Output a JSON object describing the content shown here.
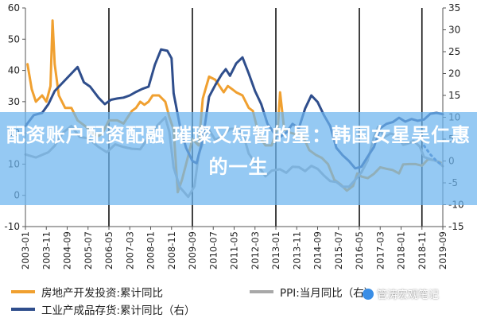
{
  "chart_data": {
    "type": "line",
    "title": "",
    "x_ticks": [
      "2003-01",
      "2003-11",
      "2004-09",
      "2005-07",
      "2006-05",
      "2007-03",
      "2008-01",
      "2008-11",
      "2009-09",
      "2010-07",
      "2011-05",
      "2012-03",
      "2013-01",
      "2013-11",
      "2014-09",
      "2015-07",
      "2016-05",
      "2017-03",
      "2018-01",
      "2018-11",
      "2019-09"
    ],
    "y_left": {
      "min": -10,
      "max": 60,
      "ticks": [
        "-10",
        "0",
        "10",
        "20",
        "30",
        "40",
        "50",
        "60"
      ]
    },
    "y_right": {
      "min": -15,
      "max": 35,
      "ticks": [
        "-15",
        "-10",
        "-5",
        "0",
        "5",
        "10",
        "15",
        "20",
        "25",
        "30",
        "35"
      ]
    },
    "grid": false,
    "legend_position": "bottom",
    "vlines": [
      "2006-05",
      "2009-09",
      "2013-01",
      "2016-05",
      "2018-11"
    ],
    "series": [
      {
        "name": "房地产开发投资:累计同比",
        "axis": "left",
        "color": "#f0a030",
        "points": [
          [
            "2003-02",
            42
          ],
          [
            "2003-04",
            34
          ],
          [
            "2003-06",
            30
          ],
          [
            "2003-09",
            32
          ],
          [
            "2003-11",
            30
          ],
          [
            "2004-01",
            35
          ],
          [
            "2004-02",
            56
          ],
          [
            "2004-03",
            42
          ],
          [
            "2004-05",
            32
          ],
          [
            "2004-08",
            28
          ],
          [
            "2004-11",
            28
          ],
          [
            "2005-02",
            24
          ],
          [
            "2005-06",
            22
          ],
          [
            "2005-09",
            20
          ],
          [
            "2005-12",
            19
          ],
          [
            "2006-02",
            20
          ],
          [
            "2006-05",
            24
          ],
          [
            "2006-09",
            24
          ],
          [
            "2006-12",
            23
          ],
          [
            "2007-02",
            25
          ],
          [
            "2007-04",
            27
          ],
          [
            "2007-06",
            28
          ],
          [
            "2007-08",
            30
          ],
          [
            "2007-10",
            29
          ],
          [
            "2007-12",
            30
          ],
          [
            "2008-02",
            32
          ],
          [
            "2008-05",
            32
          ],
          [
            "2008-08",
            30
          ],
          [
            "2008-10",
            25
          ],
          [
            "2008-12",
            21
          ],
          [
            "2009-02",
            1
          ],
          [
            "2009-04",
            5
          ],
          [
            "2009-06",
            10
          ],
          [
            "2009-09",
            18
          ],
          [
            "2009-12",
            16
          ],
          [
            "2010-02",
            31
          ],
          [
            "2010-05",
            38
          ],
          [
            "2010-08",
            37
          ],
          [
            "2010-12",
            33
          ],
          [
            "2011-02",
            35
          ],
          [
            "2011-04",
            34
          ],
          [
            "2011-06",
            33
          ],
          [
            "2011-09",
            32
          ],
          [
            "2011-12",
            28
          ],
          [
            "2012-02",
            27
          ],
          [
            "2012-05",
            19
          ],
          [
            "2012-08",
            16
          ],
          [
            "2012-11",
            16
          ],
          [
            "2013-02",
            22
          ],
          [
            "2013-03",
            33
          ],
          [
            "2013-05",
            21
          ],
          [
            "2013-08",
            20
          ],
          [
            "2013-11",
            19.5
          ],
          [
            "2014-02",
            19
          ],
          [
            "2014-05",
            14.5
          ],
          [
            "2014-08",
            13
          ],
          [
            "2014-11",
            12
          ],
          [
            "2015-02",
            10
          ],
          [
            "2015-05",
            5
          ],
          [
            "2015-08",
            3.5
          ],
          [
            "2015-11",
            1.5
          ],
          [
            "2016-02",
            3
          ],
          [
            "2016-04",
            7
          ],
          [
            "2016-06",
            6
          ],
          [
            "2016-09",
            5.5
          ],
          [
            "2016-12",
            6.9
          ],
          [
            "2017-03",
            9
          ],
          [
            "2017-06",
            8.5
          ],
          [
            "2017-09",
            8.1
          ],
          [
            "2017-12",
            7
          ],
          [
            "2018-02",
            9.9
          ],
          [
            "2018-05",
            10
          ],
          [
            "2018-08",
            10
          ],
          [
            "2018-11",
            9.5
          ],
          [
            "2019-02",
            11.6
          ],
          [
            "2019-05",
            11.2
          ],
          [
            "2019-08",
            10.5
          ]
        ]
      },
      {
        "name": "PPI:当月同比",
        "axis": "right",
        "color": "#a8a8a8",
        "points": [
          [
            "2003-01",
            1.5
          ],
          [
            "2003-06",
            0.8
          ],
          [
            "2003-12",
            2
          ],
          [
            "2004-03",
            3.5
          ],
          [
            "2004-07",
            6.5
          ],
          [
            "2004-11",
            8
          ],
          [
            "2005-03",
            5.5
          ],
          [
            "2005-07",
            5.2
          ],
          [
            "2005-12",
            3.2
          ],
          [
            "2006-04",
            2
          ],
          [
            "2006-08",
            3.8
          ],
          [
            "2006-12",
            3.2
          ],
          [
            "2007-04",
            2.8
          ],
          [
            "2007-08",
            2.7
          ],
          [
            "2007-12",
            5.4
          ],
          [
            "2008-04",
            8
          ],
          [
            "2008-08",
            10
          ],
          [
            "2008-10",
            6.6
          ],
          [
            "2008-12",
            -1.5
          ],
          [
            "2009-03",
            -6
          ],
          [
            "2009-07",
            -8.2
          ],
          [
            "2009-10",
            -5.8
          ],
          [
            "2009-12",
            1.5
          ],
          [
            "2010-03",
            5.5
          ],
          [
            "2010-05",
            7.1
          ],
          [
            "2010-08",
            4.8
          ],
          [
            "2010-12",
            5.9
          ],
          [
            "2011-03",
            7.3
          ],
          [
            "2011-07",
            7.5
          ],
          [
            "2011-10",
            5
          ],
          [
            "2011-12",
            1.7
          ],
          [
            "2012-03",
            -0.3
          ],
          [
            "2012-06",
            -2.1
          ],
          [
            "2012-08",
            -3.5
          ],
          [
            "2012-11",
            -2.2
          ],
          [
            "2013-03",
            -1.9
          ],
          [
            "2013-06",
            -2.7
          ],
          [
            "2013-09",
            -1.3
          ],
          [
            "2013-12",
            -1.4
          ],
          [
            "2014-03",
            -2.3
          ],
          [
            "2014-06",
            -1.1
          ],
          [
            "2014-09",
            -1.8
          ],
          [
            "2014-12",
            -3.3
          ],
          [
            "2015-03",
            -4.6
          ],
          [
            "2015-06",
            -4.8
          ],
          [
            "2015-09",
            -5.9
          ],
          [
            "2015-12",
            -5.9
          ],
          [
            "2016-03",
            -4.3
          ],
          [
            "2016-06",
            -2.6
          ],
          [
            "2016-09",
            0.1
          ],
          [
            "2016-12",
            5.5
          ],
          [
            "2017-02",
            7.8
          ],
          [
            "2017-05",
            5.5
          ],
          [
            "2017-08",
            6.3
          ],
          [
            "2017-11",
            5.8
          ],
          [
            "2018-02",
            3.7
          ],
          [
            "2018-05",
            4.1
          ],
          [
            "2018-07",
            4.6
          ],
          [
            "2018-10",
            3.3
          ],
          [
            "2018-12",
            0.9
          ],
          [
            "2019-03",
            0.4
          ],
          [
            "2019-06",
            0
          ],
          [
            "2019-09",
            -1.2
          ]
        ]
      },
      {
        "name": "工业产成品存货:累计同比（右）",
        "axis": "right",
        "color": "#2f4e8c",
        "points": [
          [
            "2003-01",
            8
          ],
          [
            "2003-05",
            10.5
          ],
          [
            "2003-09",
            11
          ],
          [
            "2003-12",
            13
          ],
          [
            "2004-03",
            16
          ],
          [
            "2004-07",
            18
          ],
          [
            "2004-11",
            20
          ],
          [
            "2005-02",
            21.5
          ],
          [
            "2005-05",
            18
          ],
          [
            "2005-08",
            17
          ],
          [
            "2005-12",
            14.5
          ],
          [
            "2006-03",
            13
          ],
          [
            "2006-06",
            14
          ],
          [
            "2006-09",
            14.3
          ],
          [
            "2006-12",
            14.5
          ],
          [
            "2007-03",
            15
          ],
          [
            "2007-06",
            15.8
          ],
          [
            "2007-09",
            16.5
          ],
          [
            "2007-12",
            17
          ],
          [
            "2008-03",
            22
          ],
          [
            "2008-06",
            25.5
          ],
          [
            "2008-09",
            25.2
          ],
          [
            "2008-11",
            23.5
          ],
          [
            "2008-12",
            15.5
          ],
          [
            "2009-03",
            8
          ],
          [
            "2009-06",
            3
          ],
          [
            "2009-09",
            0
          ],
          [
            "2009-11",
            -0.5
          ],
          [
            "2010-02",
            5
          ],
          [
            "2010-05",
            14.7
          ],
          [
            "2010-08",
            17.4
          ],
          [
            "2010-11",
            19.8
          ],
          [
            "2011-01",
            21
          ],
          [
            "2011-03",
            19.5
          ],
          [
            "2011-06",
            22.3
          ],
          [
            "2011-09",
            23.7
          ],
          [
            "2011-12",
            20
          ],
          [
            "2012-03",
            16
          ],
          [
            "2012-06",
            13
          ],
          [
            "2012-09",
            8.5
          ],
          [
            "2012-12",
            6.5
          ],
          [
            "2013-03",
            5.5
          ],
          [
            "2013-06",
            6.5
          ],
          [
            "2013-09",
            8.5
          ],
          [
            "2013-12",
            7.5
          ],
          [
            "2014-03",
            12
          ],
          [
            "2014-06",
            15
          ],
          [
            "2014-09",
            13.5
          ],
          [
            "2014-12",
            10.5
          ],
          [
            "2015-03",
            8
          ],
          [
            "2015-06",
            3
          ],
          [
            "2015-09",
            1.3
          ],
          [
            "2015-12",
            0
          ],
          [
            "2016-03",
            -1.7
          ],
          [
            "2016-06",
            -1.3
          ],
          [
            "2016-09",
            1
          ],
          [
            "2016-12",
            3.2
          ],
          [
            "2017-03",
            7.5
          ],
          [
            "2017-06",
            8.5
          ],
          [
            "2017-09",
            8.9
          ],
          [
            "2017-12",
            9.9
          ],
          [
            "2018-03",
            9
          ],
          [
            "2018-06",
            9.6
          ],
          [
            "2018-09",
            9.2
          ],
          [
            "2018-12",
            9.5
          ],
          [
            "2019-03",
            10.8
          ],
          [
            "2019-06",
            11
          ],
          [
            "2019-09",
            10.7
          ]
        ]
      },
      {
        "name": "",
        "axis": "right",
        "color": "#4a6fb4",
        "dashed": true,
        "points": [
          [
            "2018-12",
            3.5
          ],
          [
            "2019-03",
            1.5
          ],
          [
            "2019-06",
            0
          ],
          [
            "2019-09",
            -1
          ]
        ]
      }
    ]
  },
  "banner": {
    "text": "配资账户配资配融 璀璨又短暂的星：韩国女星吴仁惠的一生"
  },
  "legend": {
    "item1": "房地产开发投资:累计同比",
    "item2": "PPI:当月同比（右）",
    "item3": "工业产成品存货:累计同比（右）"
  },
  "watermark": {
    "text": "管涛宏观笔记"
  }
}
